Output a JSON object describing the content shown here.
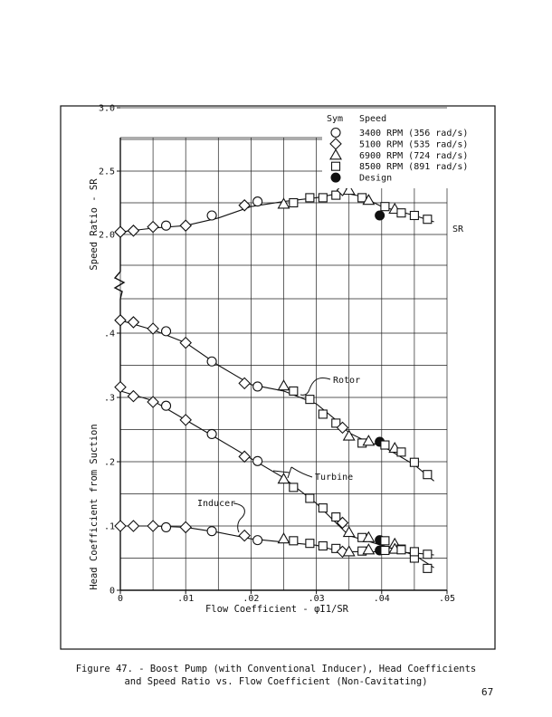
{
  "page": {
    "caption_line1": "Figure 47. - Boost Pump (with Conventional Inducer), Head Coefficients",
    "caption_line2": "and Speed Ratio vs. Flow Coefficient (Non-Cavitating)",
    "page_number": "67"
  },
  "chart_data": {
    "type": "scatter",
    "title": "",
    "xlabel": "Flow Coefficient - φI1/SR",
    "xlim": [
      0,
      0.05
    ],
    "x_ticks": [
      {
        "v": 0,
        "label": "0"
      },
      {
        "v": 0.01,
        "label": ".01"
      },
      {
        "v": 0.02,
        "label": ".02"
      },
      {
        "v": 0.03,
        "label": ".03"
      },
      {
        "v": 0.04,
        "label": ".04"
      },
      {
        "v": 0.05,
        "label": ".05"
      }
    ],
    "panels": {
      "speed_ratio": {
        "ylabel": "Speed Ratio - SR",
        "ylim": [
          1.8,
          3.4
        ],
        "y_ticks": [
          {
            "v": 2.0,
            "label": "2.0"
          },
          {
            "v": 2.5,
            "label": "2.5"
          },
          {
            "v": 3.0,
            "label": "3.0"
          }
        ]
      },
      "head_coefficient": {
        "ylabel": "Head Coefficient from Suction",
        "ylim": [
          0,
          0.44
        ],
        "y_ticks": [
          {
            "v": 0,
            "label": "0"
          },
          {
            "v": 0.1,
            "label": ".1"
          },
          {
            "v": 0.2,
            "label": ".2"
          },
          {
            "v": 0.3,
            "label": ".3"
          },
          {
            "v": 0.4,
            "label": ".4"
          }
        ]
      }
    },
    "legend": {
      "header_symbol": "Sym",
      "header_speed": "Speed",
      "position": "top-right",
      "entries": [
        {
          "marker": "circle",
          "label": "3400 RPM (356 rad/s)"
        },
        {
          "marker": "diamond",
          "label": "5100 RPM (535 rad/s)"
        },
        {
          "marker": "triangle",
          "label": "6900 RPM (724 rad/s)"
        },
        {
          "marker": "square",
          "label": "8500 RPM (891 rad/s)"
        },
        {
          "marker": "filled-circle",
          "label": "Design"
        }
      ]
    },
    "curves": [
      {
        "name": "SR",
        "panel": "speed_ratio",
        "line": [
          [
            0,
            2.02
          ],
          [
            0.005,
            2.05
          ],
          [
            0.01,
            2.07
          ],
          [
            0.015,
            2.13
          ],
          [
            0.02,
            2.22
          ],
          [
            0.025,
            2.26
          ],
          [
            0.03,
            2.29
          ],
          [
            0.034,
            2.33
          ],
          [
            0.037,
            2.3
          ],
          [
            0.04,
            2.22
          ],
          [
            0.045,
            2.15
          ],
          [
            0.048,
            2.1
          ]
        ],
        "points": [
          {
            "m": "diamond",
            "x": 0,
            "y": 2.02
          },
          {
            "m": "diamond",
            "x": 0.002,
            "y": 2.03
          },
          {
            "m": "diamond",
            "x": 0.005,
            "y": 2.06
          },
          {
            "m": "circle",
            "x": 0.007,
            "y": 2.07
          },
          {
            "m": "diamond",
            "x": 0.01,
            "y": 2.07
          },
          {
            "m": "circle",
            "x": 0.014,
            "y": 2.15
          },
          {
            "m": "diamond",
            "x": 0.019,
            "y": 2.23
          },
          {
            "m": "circle",
            "x": 0.021,
            "y": 2.26
          },
          {
            "m": "triangle",
            "x": 0.025,
            "y": 2.24
          },
          {
            "m": "square",
            "x": 0.0265,
            "y": 2.25
          },
          {
            "m": "square",
            "x": 0.029,
            "y": 2.29
          },
          {
            "m": "square",
            "x": 0.031,
            "y": 2.29
          },
          {
            "m": "square",
            "x": 0.033,
            "y": 2.31
          },
          {
            "m": "diamond",
            "x": 0.034,
            "y": 2.35
          },
          {
            "m": "triangle",
            "x": 0.035,
            "y": 2.35
          },
          {
            "m": "square",
            "x": 0.037,
            "y": 2.29
          },
          {
            "m": "triangle",
            "x": 0.038,
            "y": 2.27
          },
          {
            "m": "filled-circle",
            "x": 0.0397,
            "y": 2.15
          },
          {
            "m": "square",
            "x": 0.0405,
            "y": 2.22
          },
          {
            "m": "triangle",
            "x": 0.042,
            "y": 2.2
          },
          {
            "m": "square",
            "x": 0.043,
            "y": 2.17
          },
          {
            "m": "square",
            "x": 0.045,
            "y": 2.15
          },
          {
            "m": "square",
            "x": 0.047,
            "y": 2.12
          }
        ]
      },
      {
        "name": "Rotor",
        "panel": "head_coefficient",
        "line": [
          [
            0,
            0.42
          ],
          [
            0.005,
            0.405
          ],
          [
            0.01,
            0.385
          ],
          [
            0.015,
            0.35
          ],
          [
            0.02,
            0.32
          ],
          [
            0.025,
            0.31
          ],
          [
            0.03,
            0.29
          ],
          [
            0.033,
            0.265
          ],
          [
            0.035,
            0.245
          ],
          [
            0.038,
            0.23
          ],
          [
            0.04,
            0.225
          ],
          [
            0.045,
            0.195
          ],
          [
            0.048,
            0.17
          ]
        ],
        "points": [
          {
            "m": "diamond",
            "x": 0,
            "y": 0.42
          },
          {
            "m": "diamond",
            "x": 0.002,
            "y": 0.417
          },
          {
            "m": "diamond",
            "x": 0.005,
            "y": 0.407
          },
          {
            "m": "circle",
            "x": 0.007,
            "y": 0.403
          },
          {
            "m": "diamond",
            "x": 0.01,
            "y": 0.385
          },
          {
            "m": "circle",
            "x": 0.014,
            "y": 0.356
          },
          {
            "m": "diamond",
            "x": 0.019,
            "y": 0.322
          },
          {
            "m": "circle",
            "x": 0.021,
            "y": 0.317
          },
          {
            "m": "triangle",
            "x": 0.025,
            "y": 0.318
          },
          {
            "m": "square",
            "x": 0.0265,
            "y": 0.31
          },
          {
            "m": "square",
            "x": 0.029,
            "y": 0.297
          },
          {
            "m": "square",
            "x": 0.031,
            "y": 0.274
          },
          {
            "m": "square",
            "x": 0.033,
            "y": 0.26
          },
          {
            "m": "diamond",
            "x": 0.034,
            "y": 0.253
          },
          {
            "m": "triangle",
            "x": 0.035,
            "y": 0.24
          },
          {
            "m": "square",
            "x": 0.037,
            "y": 0.229
          },
          {
            "m": "triangle",
            "x": 0.038,
            "y": 0.232
          },
          {
            "m": "filled-circle",
            "x": 0.0397,
            "y": 0.231
          },
          {
            "m": "square",
            "x": 0.0405,
            "y": 0.226
          },
          {
            "m": "triangle",
            "x": 0.042,
            "y": 0.221
          },
          {
            "m": "square",
            "x": 0.043,
            "y": 0.215
          },
          {
            "m": "square",
            "x": 0.045,
            "y": 0.199
          },
          {
            "m": "square",
            "x": 0.047,
            "y": 0.18
          }
        ]
      },
      {
        "name": "Turbine",
        "panel": "head_coefficient",
        "line": [
          [
            0,
            0.31
          ],
          [
            0.005,
            0.295
          ],
          [
            0.01,
            0.265
          ],
          [
            0.015,
            0.235
          ],
          [
            0.02,
            0.205
          ],
          [
            0.025,
            0.175
          ],
          [
            0.03,
            0.135
          ],
          [
            0.033,
            0.105
          ],
          [
            0.035,
            0.085
          ],
          [
            0.04,
            0.07
          ],
          [
            0.045,
            0.055
          ],
          [
            0.048,
            0.035
          ]
        ],
        "points": [
          {
            "m": "diamond",
            "x": 0,
            "y": 0.316
          },
          {
            "m": "diamond",
            "x": 0.002,
            "y": 0.302
          },
          {
            "m": "diamond",
            "x": 0.005,
            "y": 0.293
          },
          {
            "m": "circle",
            "x": 0.007,
            "y": 0.287
          },
          {
            "m": "diamond",
            "x": 0.01,
            "y": 0.265
          },
          {
            "m": "circle",
            "x": 0.014,
            "y": 0.243
          },
          {
            "m": "diamond",
            "x": 0.019,
            "y": 0.208
          },
          {
            "m": "circle",
            "x": 0.021,
            "y": 0.201
          },
          {
            "m": "triangle",
            "x": 0.025,
            "y": 0.173
          },
          {
            "m": "square",
            "x": 0.0265,
            "y": 0.16
          },
          {
            "m": "square",
            "x": 0.029,
            "y": 0.143
          },
          {
            "m": "square",
            "x": 0.031,
            "y": 0.128
          },
          {
            "m": "square",
            "x": 0.033,
            "y": 0.114
          },
          {
            "m": "diamond",
            "x": 0.034,
            "y": 0.105
          },
          {
            "m": "triangle",
            "x": 0.035,
            "y": 0.09
          },
          {
            "m": "square",
            "x": 0.037,
            "y": 0.082
          },
          {
            "m": "triangle",
            "x": 0.038,
            "y": 0.082
          },
          {
            "m": "filled-circle",
            "x": 0.0397,
            "y": 0.078
          },
          {
            "m": "square",
            "x": 0.0405,
            "y": 0.077
          },
          {
            "m": "triangle",
            "x": 0.042,
            "y": 0.072
          },
          {
            "m": "square",
            "x": 0.043,
            "y": 0.064
          },
          {
            "m": "square",
            "x": 0.045,
            "y": 0.05
          },
          {
            "m": "square",
            "x": 0.047,
            "y": 0.034
          }
        ]
      },
      {
        "name": "Inducer",
        "panel": "head_coefficient",
        "line": [
          [
            0,
            0.1
          ],
          [
            0.005,
            0.1
          ],
          [
            0.01,
            0.098
          ],
          [
            0.015,
            0.09
          ],
          [
            0.02,
            0.08
          ],
          [
            0.025,
            0.075
          ],
          [
            0.03,
            0.07
          ],
          [
            0.033,
            0.062
          ],
          [
            0.035,
            0.06
          ],
          [
            0.04,
            0.06
          ],
          [
            0.045,
            0.058
          ],
          [
            0.048,
            0.055
          ]
        ],
        "points": [
          {
            "m": "diamond",
            "x": 0,
            "y": 0.1
          },
          {
            "m": "diamond",
            "x": 0.002,
            "y": 0.1
          },
          {
            "m": "diamond",
            "x": 0.005,
            "y": 0.1
          },
          {
            "m": "circle",
            "x": 0.007,
            "y": 0.098
          },
          {
            "m": "diamond",
            "x": 0.01,
            "y": 0.098
          },
          {
            "m": "circle",
            "x": 0.014,
            "y": 0.092
          },
          {
            "m": "diamond",
            "x": 0.019,
            "y": 0.085
          },
          {
            "m": "circle",
            "x": 0.021,
            "y": 0.078
          },
          {
            "m": "triangle",
            "x": 0.025,
            "y": 0.08
          },
          {
            "m": "square",
            "x": 0.0265,
            "y": 0.077
          },
          {
            "m": "square",
            "x": 0.029,
            "y": 0.073
          },
          {
            "m": "square",
            "x": 0.031,
            "y": 0.069
          },
          {
            "m": "square",
            "x": 0.033,
            "y": 0.065
          },
          {
            "m": "diamond",
            "x": 0.034,
            "y": 0.06
          },
          {
            "m": "triangle",
            "x": 0.035,
            "y": 0.06
          },
          {
            "m": "square",
            "x": 0.037,
            "y": 0.061
          },
          {
            "m": "triangle",
            "x": 0.038,
            "y": 0.063
          },
          {
            "m": "filled-circle",
            "x": 0.0397,
            "y": 0.062
          },
          {
            "m": "square",
            "x": 0.0405,
            "y": 0.062
          },
          {
            "m": "triangle",
            "x": 0.042,
            "y": 0.064
          },
          {
            "m": "square",
            "x": 0.043,
            "y": 0.063
          },
          {
            "m": "square",
            "x": 0.045,
            "y": 0.06
          },
          {
            "m": "square",
            "x": 0.047,
            "y": 0.056
          }
        ]
      }
    ],
    "grid": true
  }
}
